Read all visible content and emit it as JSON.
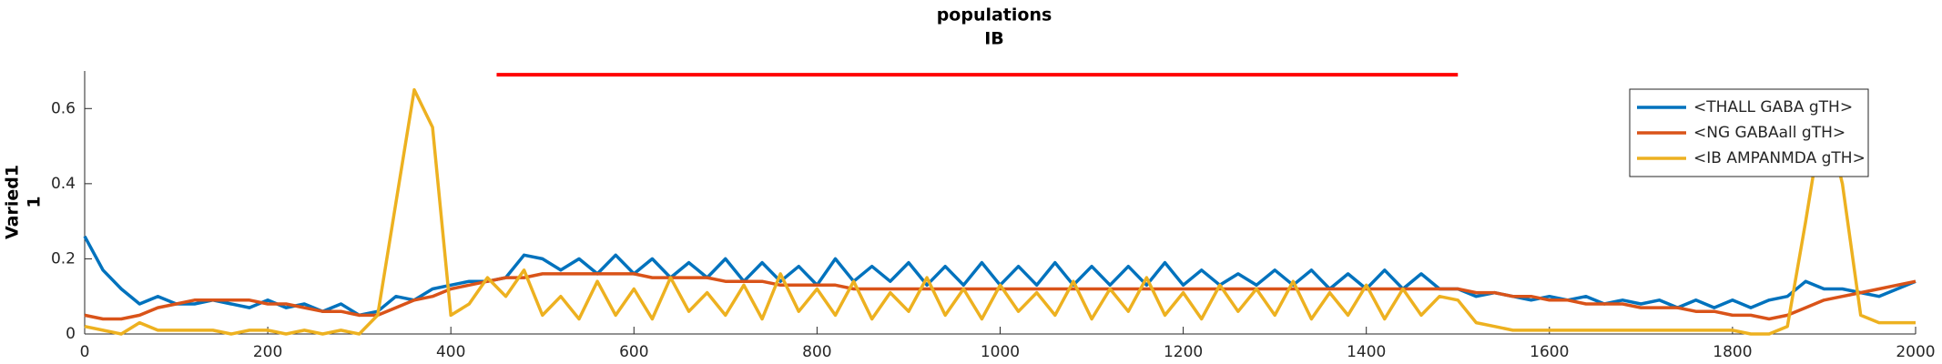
{
  "chart_data": {
    "type": "line",
    "title": [
      "populations",
      "IB"
    ],
    "y_label": [
      "Varied1",
      "1"
    ],
    "x": [
      0,
      20,
      40,
      60,
      80,
      100,
      120,
      140,
      160,
      180,
      200,
      220,
      240,
      260,
      280,
      300,
      320,
      340,
      360,
      380,
      400,
      420,
      440,
      460,
      480,
      500,
      520,
      540,
      560,
      580,
      600,
      620,
      640,
      660,
      680,
      700,
      720,
      740,
      760,
      780,
      800,
      820,
      840,
      860,
      880,
      900,
      920,
      940,
      960,
      980,
      1000,
      1020,
      1040,
      1060,
      1080,
      1100,
      1120,
      1140,
      1160,
      1180,
      1200,
      1220,
      1240,
      1260,
      1280,
      1300,
      1320,
      1340,
      1360,
      1380,
      1400,
      1420,
      1440,
      1460,
      1480,
      1500,
      1520,
      1540,
      1560,
      1580,
      1600,
      1620,
      1640,
      1660,
      1680,
      1700,
      1720,
      1740,
      1760,
      1780,
      1800,
      1820,
      1840,
      1860,
      1880,
      1900,
      1920,
      1940,
      1960,
      1980,
      2000
    ],
    "series": [
      {
        "name": "<THALL GABA gTH>",
        "color": "#0072bd",
        "values": [
          0.26,
          0.17,
          0.12,
          0.08,
          0.1,
          0.08,
          0.08,
          0.09,
          0.08,
          0.07,
          0.09,
          0.07,
          0.08,
          0.06,
          0.08,
          0.05,
          0.06,
          0.1,
          0.09,
          0.12,
          0.13,
          0.14,
          0.14,
          0.15,
          0.21,
          0.2,
          0.17,
          0.2,
          0.16,
          0.21,
          0.16,
          0.2,
          0.15,
          0.19,
          0.15,
          0.2,
          0.14,
          0.19,
          0.14,
          0.18,
          0.13,
          0.2,
          0.14,
          0.18,
          0.14,
          0.19,
          0.13,
          0.18,
          0.13,
          0.19,
          0.13,
          0.18,
          0.13,
          0.19,
          0.13,
          0.18,
          0.13,
          0.18,
          0.13,
          0.19,
          0.13,
          0.17,
          0.13,
          0.16,
          0.13,
          0.17,
          0.13,
          0.17,
          0.12,
          0.16,
          0.12,
          0.17,
          0.12,
          0.16,
          0.12,
          0.12,
          0.1,
          0.11,
          0.1,
          0.09,
          0.1,
          0.09,
          0.1,
          0.08,
          0.09,
          0.08,
          0.09,
          0.07,
          0.09,
          0.07,
          0.09,
          0.07,
          0.09,
          0.1,
          0.14,
          0.12,
          0.12,
          0.11,
          0.1,
          0.12,
          0.14
        ]
      },
      {
        "name": "<NG GABAall gTH>",
        "color": "#d95319",
        "values": [
          0.05,
          0.04,
          0.04,
          0.05,
          0.07,
          0.08,
          0.09,
          0.09,
          0.09,
          0.09,
          0.08,
          0.08,
          0.07,
          0.06,
          0.06,
          0.05,
          0.05,
          0.07,
          0.09,
          0.1,
          0.12,
          0.13,
          0.14,
          0.15,
          0.15,
          0.16,
          0.16,
          0.16,
          0.16,
          0.16,
          0.16,
          0.15,
          0.15,
          0.15,
          0.15,
          0.14,
          0.14,
          0.14,
          0.13,
          0.13,
          0.13,
          0.13,
          0.12,
          0.12,
          0.12,
          0.12,
          0.12,
          0.12,
          0.12,
          0.12,
          0.12,
          0.12,
          0.12,
          0.12,
          0.12,
          0.12,
          0.12,
          0.12,
          0.12,
          0.12,
          0.12,
          0.12,
          0.12,
          0.12,
          0.12,
          0.12,
          0.12,
          0.12,
          0.12,
          0.12,
          0.12,
          0.12,
          0.12,
          0.12,
          0.12,
          0.12,
          0.11,
          0.11,
          0.1,
          0.1,
          0.09,
          0.09,
          0.08,
          0.08,
          0.08,
          0.07,
          0.07,
          0.07,
          0.06,
          0.06,
          0.05,
          0.05,
          0.04,
          0.05,
          0.07,
          0.09,
          0.1,
          0.11,
          0.12,
          0.13,
          0.14
        ]
      },
      {
        "name": "<IB AMPANMDA gTH>",
        "color": "#edb120",
        "values": [
          0.02,
          0.01,
          0.0,
          0.03,
          0.01,
          0.01,
          0.01,
          0.01,
          0.0,
          0.01,
          0.01,
          0.0,
          0.01,
          0.0,
          0.01,
          0.0,
          0.05,
          0.35,
          0.65,
          0.55,
          0.05,
          0.08,
          0.15,
          0.1,
          0.17,
          0.05,
          0.1,
          0.04,
          0.14,
          0.05,
          0.12,
          0.04,
          0.15,
          0.06,
          0.11,
          0.05,
          0.13,
          0.04,
          0.16,
          0.06,
          0.12,
          0.05,
          0.14,
          0.04,
          0.11,
          0.06,
          0.15,
          0.05,
          0.12,
          0.04,
          0.13,
          0.06,
          0.11,
          0.05,
          0.14,
          0.04,
          0.12,
          0.06,
          0.15,
          0.05,
          0.11,
          0.04,
          0.13,
          0.06,
          0.12,
          0.05,
          0.14,
          0.04,
          0.11,
          0.05,
          0.13,
          0.04,
          0.12,
          0.05,
          0.1,
          0.09,
          0.03,
          0.02,
          0.01,
          0.01,
          0.01,
          0.01,
          0.01,
          0.01,
          0.01,
          0.01,
          0.01,
          0.01,
          0.01,
          0.01,
          0.01,
          0.0,
          0.0,
          0.02,
          0.3,
          0.6,
          0.4,
          0.05,
          0.03,
          0.03,
          0.03
        ]
      }
    ],
    "marker_line": {
      "x": [
        450,
        1500
      ],
      "y": 0.69,
      "color": "#ff0000"
    },
    "xlim": [
      0,
      2000
    ],
    "xticks": [
      0,
      200,
      400,
      600,
      800,
      1000,
      1200,
      1400,
      1600,
      1800,
      2000
    ],
    "ylim": [
      0,
      0.7
    ],
    "yticks": [
      0,
      0.2,
      0.4,
      0.6
    ],
    "legend": "upper right"
  }
}
